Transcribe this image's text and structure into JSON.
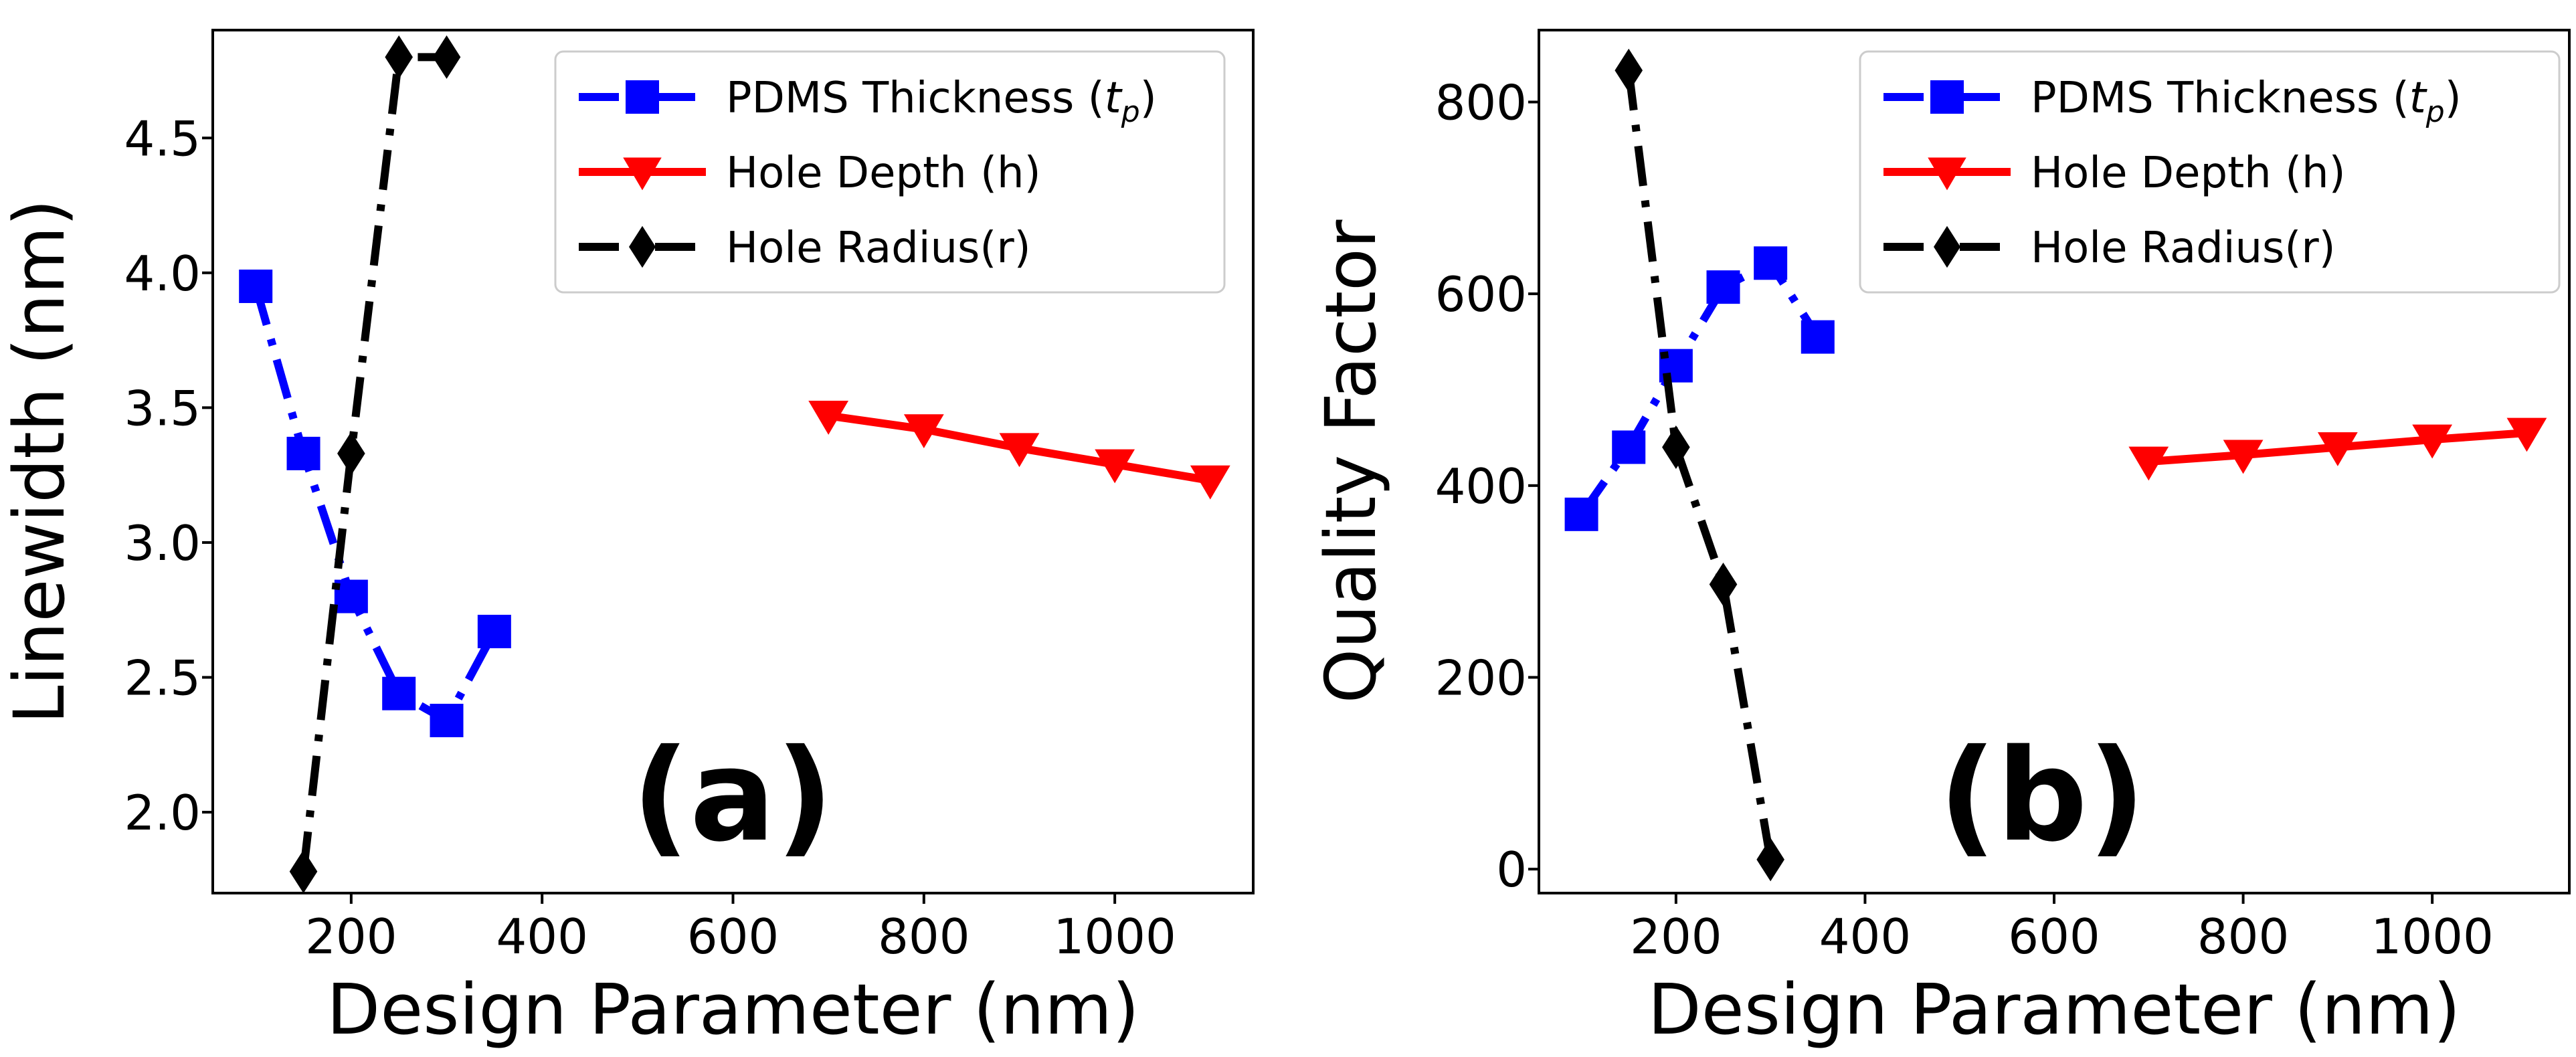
{
  "colors": {
    "pdms": "#0000ff",
    "depth": "#ff0000",
    "radius": "#000000"
  },
  "chart_data": [
    {
      "type": "line",
      "panel_label": "(a)",
      "xlabel": "Design Parameter (nm)",
      "ylabel": "Linewidth (nm)",
      "xlim": [
        55,
        1145
      ],
      "ylim": [
        1.7,
        4.9
      ],
      "xticks": [
        200,
        400,
        600,
        800,
        1000
      ],
      "xtick_labels": [
        "200",
        "400",
        "600",
        "800",
        "1000"
      ],
      "yticks": [
        2.0,
        2.5,
        3.0,
        3.5,
        4.0,
        4.5
      ],
      "ytick_labels": [
        "2.0",
        "2.5",
        "3.0",
        "3.5",
        "4.0",
        "4.5"
      ],
      "legend_position": "upper-right",
      "series": [
        {
          "name": "PDMS Thickness (t_p)",
          "legend_label": "PDMS Thickness (",
          "legend_var": "t",
          "legend_sub": "p",
          "legend_close": ")",
          "color_key": "pdms",
          "marker": "square",
          "line_style": "mixed",
          "x": [
            100,
            150,
            200,
            250,
            300,
            350
          ],
          "y": [
            3.95,
            3.33,
            2.8,
            2.44,
            2.34,
            2.67
          ]
        },
        {
          "name": "Hole Depth (h)",
          "legend_label": "Hole Depth (h)",
          "color_key": "depth",
          "marker": "triangle-down",
          "line_style": "solid",
          "x": [
            700,
            800,
            900,
            1000,
            1100
          ],
          "y": [
            3.47,
            3.42,
            3.35,
            3.29,
            3.23
          ]
        },
        {
          "name": "Hole Radius(r)",
          "legend_label": "Hole Radius(r)",
          "color_key": "radius",
          "marker": "diamond",
          "line_style": "dashdot",
          "x": [
            150,
            200,
            250,
            300
          ],
          "y": [
            1.78,
            3.33,
            4.8,
            4.8
          ]
        }
      ]
    },
    {
      "type": "line",
      "panel_label": "(b)",
      "xlabel": "Design Parameter (nm)",
      "ylabel": "Quality Factor",
      "xlim": [
        55,
        1145
      ],
      "ylim": [
        -25,
        875
      ],
      "xticks": [
        200,
        400,
        600,
        800,
        1000
      ],
      "xtick_labels": [
        "200",
        "400",
        "600",
        "800",
        "1000"
      ],
      "yticks": [
        0,
        200,
        400,
        600,
        800
      ],
      "ytick_labels": [
        "0",
        "200",
        "400",
        "600",
        "800"
      ],
      "legend_position": "upper-right",
      "series": [
        {
          "name": "PDMS Thickness (t_p)",
          "legend_label": "PDMS Thickness (",
          "legend_var": "t",
          "legend_sub": "p",
          "legend_close": ")",
          "color_key": "pdms",
          "marker": "square",
          "line_style": "mixed",
          "x": [
            100,
            150,
            200,
            250,
            300,
            350
          ],
          "y": [
            370,
            440,
            525,
            607,
            632,
            555
          ]
        },
        {
          "name": "Hole Depth (h)",
          "legend_label": "Hole Depth (h)",
          "color_key": "depth",
          "marker": "triangle-down",
          "line_style": "solid",
          "x": [
            700,
            800,
            900,
            1000,
            1100
          ],
          "y": [
            425,
            432,
            440,
            448,
            455
          ]
        },
        {
          "name": "Hole Radius(r)",
          "legend_label": "Hole Radius(r)",
          "color_key": "radius",
          "marker": "diamond",
          "line_style": "dashdot",
          "x": [
            150,
            200,
            250,
            300
          ],
          "y": [
            833,
            440,
            297,
            10
          ]
        }
      ]
    }
  ]
}
